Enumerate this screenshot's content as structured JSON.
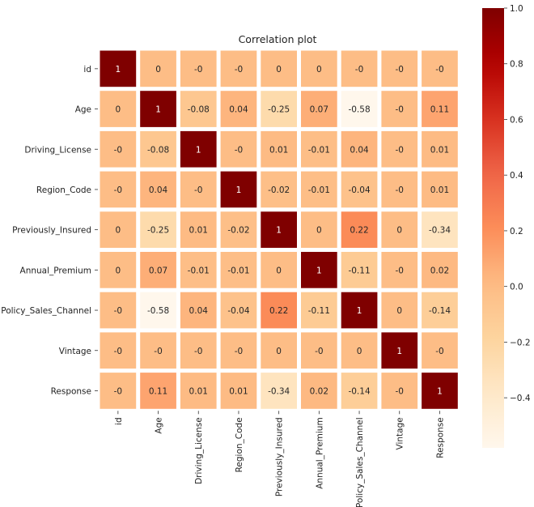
{
  "chart_data": {
    "type": "heatmap",
    "title": "Correlation plot",
    "rows": [
      "id",
      "Age",
      "Driving_License",
      "Region_Code",
      "Previously_Insured",
      "Annual_Premium",
      "Policy_Sales_Channel",
      "Vintage",
      "Response"
    ],
    "columns": [
      "id",
      "Age",
      "Driving_License",
      "Region_Code",
      "Previously_Insured",
      "Annual_Premium",
      "Policy_Sales_Channel",
      "Vintage",
      "Response"
    ],
    "values": [
      [
        1,
        0,
        -0.0,
        -0.0,
        0,
        0,
        -0.0,
        -0.0,
        -0.0
      ],
      [
        0,
        1,
        -0.08,
        0.04,
        -0.25,
        0.07,
        -0.58,
        -0.0,
        0.11
      ],
      [
        -0.0,
        -0.08,
        1,
        -0.0,
        0.01,
        -0.01,
        0.04,
        -0.0,
        0.01
      ],
      [
        -0.0,
        0.04,
        -0.0,
        1,
        -0.02,
        -0.01,
        -0.04,
        -0.0,
        0.01
      ],
      [
        0,
        -0.25,
        0.01,
        -0.02,
        1,
        0,
        0.22,
        0,
        -0.34
      ],
      [
        0,
        0.07,
        -0.01,
        -0.01,
        0,
        1,
        -0.11,
        -0.0,
        0.02
      ],
      [
        -0.0,
        -0.58,
        0.04,
        -0.04,
        0.22,
        -0.11,
        1,
        0,
        -0.14
      ],
      [
        -0.0,
        -0.0,
        -0.0,
        -0.0,
        0,
        -0.0,
        0,
        1,
        -0.0
      ],
      [
        -0.0,
        0.11,
        0.01,
        0.01,
        -0.34,
        0.02,
        -0.14,
        -0.0,
        1
      ]
    ],
    "cell_labels": [
      [
        "1",
        "0",
        "-0",
        "-0",
        "0",
        "0",
        "-0",
        "-0",
        "-0"
      ],
      [
        "0",
        "1",
        "-0.08",
        "0.04",
        "-0.25",
        "0.07",
        "-0.58",
        "-0",
        "0.11"
      ],
      [
        "-0",
        "-0.08",
        "1",
        "-0",
        "0.01",
        "-0.01",
        "0.04",
        "-0",
        "0.01"
      ],
      [
        "-0",
        "0.04",
        "-0",
        "1",
        "-0.02",
        "-0.01",
        "-0.04",
        "-0",
        "0.01"
      ],
      [
        "0",
        "-0.25",
        "0.01",
        "-0.02",
        "1",
        "0",
        "0.22",
        "0",
        "-0.34"
      ],
      [
        "0",
        "0.07",
        "-0.01",
        "-0.01",
        "0",
        "1",
        "-0.11",
        "-0",
        "0.02"
      ],
      [
        "-0",
        "-0.58",
        "0.04",
        "-0.04",
        "0.22",
        "-0.11",
        "1",
        "0",
        "-0.14"
      ],
      [
        "-0",
        "-0",
        "-0",
        "-0",
        "0",
        "-0",
        "0",
        "1",
        "-0"
      ],
      [
        "-0",
        "0.11",
        "0.01",
        "0.01",
        "-0.34",
        "0.02",
        "-0.14",
        "-0",
        "1"
      ]
    ],
    "colormap": "OrRd",
    "colorbar": {
      "vmin": -0.58,
      "vmax": 1.0,
      "ticks": [
        1.0,
        0.8,
        0.6,
        0.4,
        0.2,
        0.0,
        -0.2,
        -0.4
      ],
      "tick_labels": [
        "1.0",
        "0.8",
        "0.6",
        "0.4",
        "0.2",
        "0.0",
        "−0.2",
        "−0.4"
      ]
    },
    "colors": {
      "low": "#fff7ec",
      "high": "#7f0000",
      "cell_border": "#ffffff",
      "label_dark": "#262626",
      "label_light": "#ffffff"
    },
    "grid": false,
    "legend": "colorbar-right"
  }
}
